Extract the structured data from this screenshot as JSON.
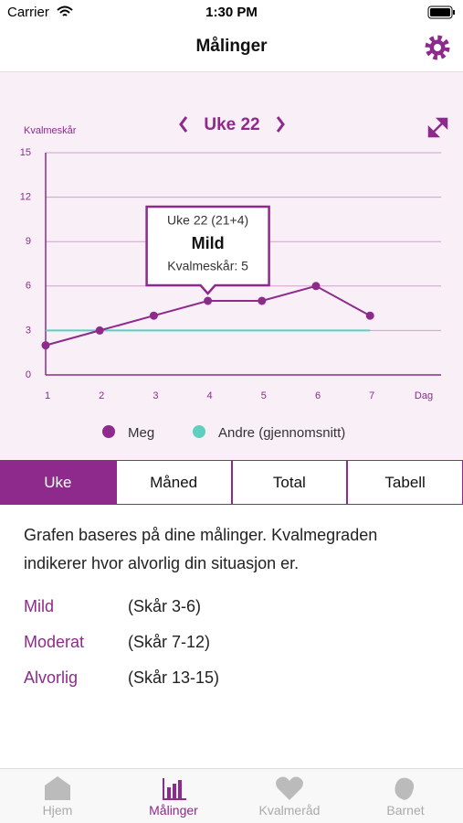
{
  "status_bar": {
    "carrier": "Carrier",
    "time": "1:30 PM"
  },
  "nav": {
    "title": "Målinger"
  },
  "chart_data": {
    "type": "line",
    "title": "Uke 22",
    "y_label": "Kvalmeskår",
    "x_label": "Dag",
    "categories": [
      "1",
      "2",
      "3",
      "4",
      "5",
      "6",
      "7"
    ],
    "ylim": [
      0,
      15
    ],
    "yticks": [
      0,
      3,
      6,
      9,
      12,
      15
    ],
    "grid": true,
    "series": [
      {
        "name": "Meg",
        "color": "#8e2a8c",
        "markers": true,
        "values": [
          2,
          3,
          4,
          5,
          5,
          6,
          4
        ]
      },
      {
        "name": "Andre (gjennomsnitt)",
        "color": "#5fcfbf",
        "markers": false,
        "values": [
          3,
          3,
          3,
          3,
          3,
          3,
          3
        ]
      }
    ],
    "tooltip": {
      "title": "Uke 22 (21+4)",
      "level": "Mild",
      "score_label": "Kvalmeskår: 5",
      "series": 0,
      "index": 3
    }
  },
  "tabs": [
    "Uke",
    "Måned",
    "Total",
    "Tabell"
  ],
  "active_tab": 0,
  "description": "Grafen baseres på dine målinger. Kvalmegraden indikerer hvor alvorlig din situasjon er.",
  "severity": [
    {
      "name": "Mild",
      "range": "(Skår 3-6)"
    },
    {
      "name": "Moderat",
      "range": "(Skår 7-12)"
    },
    {
      "name": "Alvorlig",
      "range": "(Skår 13-15)"
    }
  ],
  "tab_bar": {
    "items": [
      "Hjem",
      "Målinger",
      "Kvalmeråd",
      "Barnet"
    ],
    "active": 1
  }
}
